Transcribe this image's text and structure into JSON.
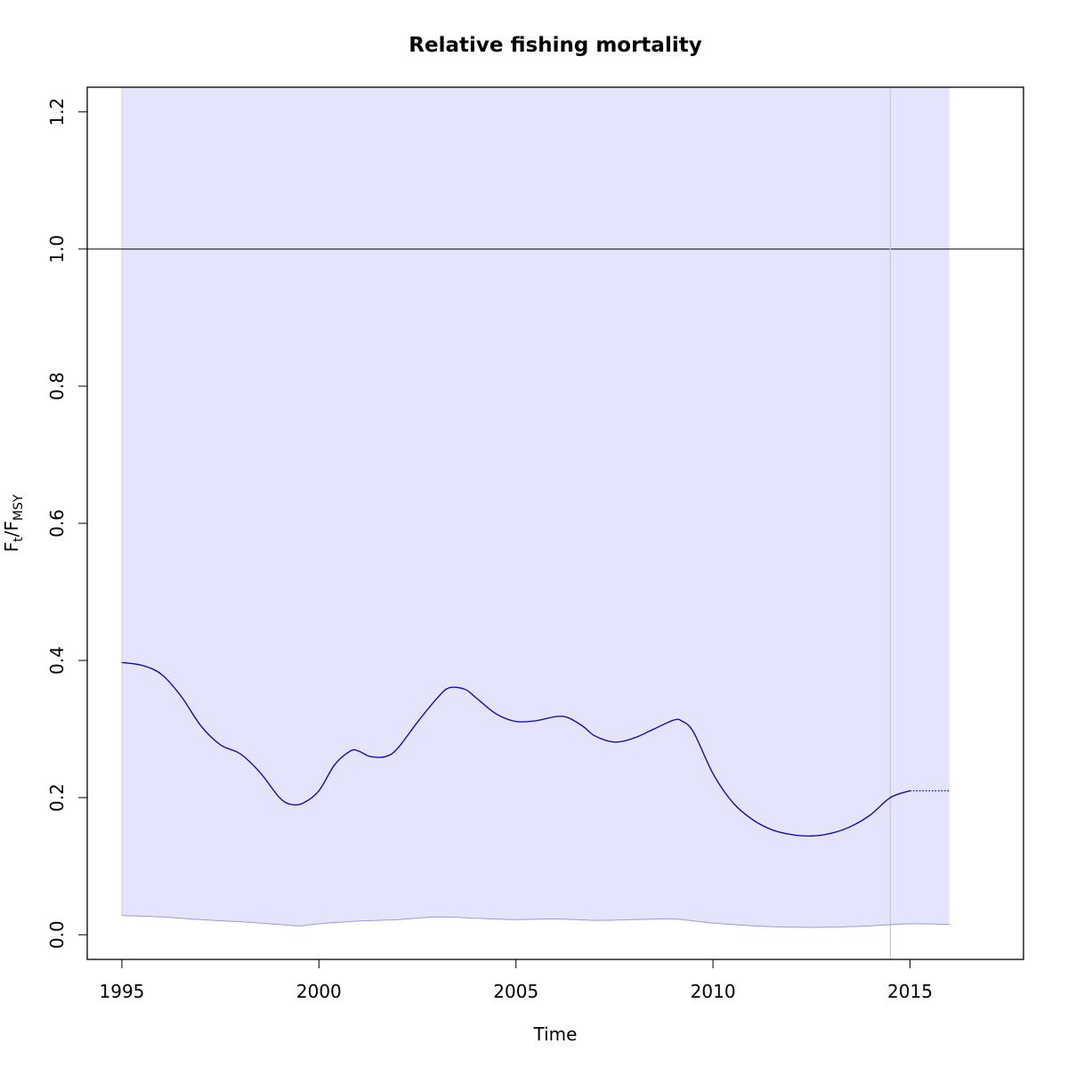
{
  "chart_data": {
    "type": "line",
    "title": "Relative fishing mortality",
    "xlabel": "Time",
    "ylabel": {
      "main": "F",
      "sub1": "t",
      "sep": "/F",
      "sub2": "MSY"
    },
    "xlim": [
      1994.12,
      2017.88
    ],
    "ylim": [
      -0.036,
      1.236
    ],
    "x_ticks": [
      1995,
      2000,
      2005,
      2010,
      2015
    ],
    "x_tick_labels": [
      "1995",
      "2000",
      "2005",
      "2010",
      "2015"
    ],
    "y_ticks": [
      0.0,
      0.2,
      0.4,
      0.6,
      0.8,
      1.0,
      1.2
    ],
    "y_tick_labels": [
      "0.0",
      "0.2",
      "0.4",
      "0.6",
      "0.8",
      "1.0",
      "1.2"
    ],
    "reference_line_y": 1.0,
    "last_observation_x": 2014.5,
    "band_x_range": [
      1995,
      2016
    ],
    "colors": {
      "band": "#e4e4fc",
      "estimate": "#0000cc",
      "lower_bound": "#9a9ae6",
      "reference": "#000000",
      "last_obs": "#c8c8d8"
    },
    "estimate": {
      "x": [
        1995.0,
        1995.5,
        1996.0,
        1996.5,
        1997.0,
        1997.5,
        1998.0,
        1998.5,
        1999.0,
        1999.3,
        1999.6,
        2000.0,
        2000.4,
        2000.8,
        2001.0,
        2001.3,
        2001.7,
        2002.0,
        2002.5,
        2003.0,
        2003.3,
        2003.7,
        2004.0,
        2004.5,
        2005.0,
        2005.5,
        2006.0,
        2006.3,
        2006.7,
        2007.0,
        2007.5,
        2008.0,
        2008.5,
        2009.0,
        2009.2,
        2009.5,
        2010.0,
        2010.5,
        2011.0,
        2011.5,
        2012.0,
        2012.5,
        2013.0,
        2013.5,
        2014.0,
        2014.5,
        2015.0
      ],
      "y": [
        0.397,
        0.393,
        0.38,
        0.348,
        0.305,
        0.277,
        0.264,
        0.237,
        0.2,
        0.19,
        0.192,
        0.21,
        0.248,
        0.268,
        0.268,
        0.26,
        0.26,
        0.272,
        0.31,
        0.345,
        0.36,
        0.358,
        0.345,
        0.322,
        0.311,
        0.312,
        0.318,
        0.317,
        0.304,
        0.29,
        0.281,
        0.287,
        0.3,
        0.313,
        0.312,
        0.296,
        0.235,
        0.193,
        0.168,
        0.153,
        0.146,
        0.144,
        0.148,
        0.158,
        0.175,
        0.2,
        0.21
      ]
    },
    "prediction": {
      "x": [
        2015.0,
        2016.0
      ],
      "y": [
        0.21,
        0.21
      ]
    },
    "lower_bound": {
      "x": [
        1995.0,
        1996.0,
        1997.0,
        1998.0,
        1999.0,
        1999.5,
        2000.0,
        2001.0,
        2002.0,
        2003.0,
        2004.0,
        2005.0,
        2006.0,
        2007.0,
        2008.0,
        2009.0,
        2010.0,
        2011.0,
        2012.0,
        2013.0,
        2014.0,
        2015.0,
        2016.0
      ],
      "y": [
        0.028,
        0.026,
        0.022,
        0.019,
        0.015,
        0.013,
        0.016,
        0.02,
        0.022,
        0.026,
        0.024,
        0.022,
        0.023,
        0.021,
        0.022,
        0.023,
        0.017,
        0.013,
        0.011,
        0.011,
        0.013,
        0.016,
        0.015
      ]
    }
  }
}
